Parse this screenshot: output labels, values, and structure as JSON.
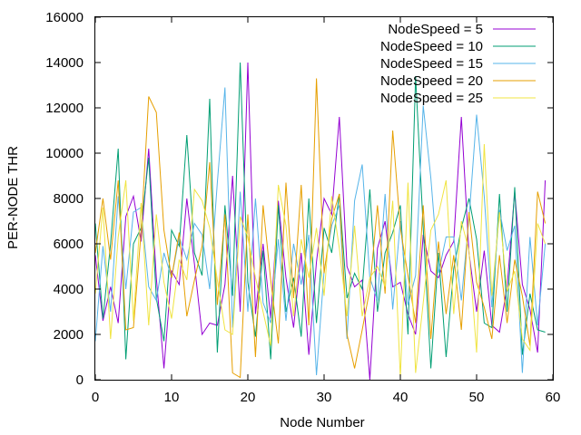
{
  "chart_data": {
    "type": "line",
    "title": "",
    "xlabel": "Node Number",
    "ylabel": "PER-NODE THR",
    "xlim": [
      0,
      60
    ],
    "ylim": [
      0,
      16000
    ],
    "x_ticks": [
      "0",
      "10",
      "20",
      "30",
      "40",
      "50",
      "60"
    ],
    "y_ticks": [
      "0",
      "2000",
      "4000",
      "6000",
      "8000",
      "10000",
      "12000",
      "14000",
      "16000"
    ],
    "grid": false,
    "legend_position": "top-right",
    "x": [
      0,
      1,
      2,
      3,
      4,
      5,
      6,
      7,
      8,
      9,
      10,
      11,
      12,
      13,
      14,
      15,
      16,
      17,
      18,
      19,
      20,
      21,
      22,
      23,
      24,
      25,
      26,
      27,
      28,
      29,
      30,
      31,
      32,
      33,
      34,
      35,
      36,
      37,
      38,
      39,
      40,
      41,
      42,
      43,
      44,
      45,
      46,
      47,
      48,
      49,
      50,
      51,
      52,
      53,
      54,
      55,
      56,
      57,
      58,
      59
    ],
    "series": [
      {
        "name": "NodeSpeed = 5",
        "color": "#9400d3",
        "values": [
          5500,
          2600,
          4100,
          2500,
          7200,
          8100,
          6100,
          10200,
          4500,
          500,
          4800,
          4200,
          8000,
          5100,
          2000,
          2500,
          2400,
          4200,
          9000,
          3000,
          14000,
          2900,
          6000,
          2700,
          7900,
          4500,
          2300,
          5600,
          1100,
          5200,
          8000,
          7300,
          11600,
          5000,
          4100,
          4400,
          0,
          5800,
          7000,
          4100,
          4300,
          2900,
          2000,
          6400,
          4800,
          4500,
          5500,
          6100,
          11600,
          5600,
          3000,
          5700,
          2400,
          2100,
          4100,
          8300,
          4200,
          3100,
          1200,
          8800
        ]
      },
      {
        "name": "NodeSpeed = 10",
        "color": "#009e73",
        "values": [
          6900,
          2700,
          6000,
          10200,
          900,
          6000,
          6700,
          9800,
          3600,
          1700,
          6600,
          5900,
          10800,
          5600,
          4600,
          12400,
          1200,
          7700,
          3700,
          14000,
          4300,
          1900,
          5700,
          900,
          7700,
          3000,
          4500,
          1900,
          8000,
          2500,
          6700,
          5600,
          8200,
          3600,
          4700,
          4000,
          8400,
          3000,
          5600,
          6500,
          7700,
          2000,
          13400,
          6700,
          500,
          5600,
          1000,
          4900,
          6700,
          8000,
          6200,
          2500,
          2300,
          8200,
          3000,
          8500,
          1100,
          3800,
          2200,
          2100
        ]
      },
      {
        "name": "NodeSpeed = 15",
        "color": "#56b4e9",
        "values": [
          1700,
          5900,
          3000,
          8100,
          4000,
          7400,
          7600,
          4100,
          3500,
          5600,
          4500,
          6300,
          5300,
          6900,
          6400,
          4000,
          8700,
          12900,
          2300,
          8300,
          3000,
          8000,
          3400,
          2500,
          6200,
          2600,
          6000,
          4200,
          6400,
          200,
          4800,
          6800,
          7700,
          1800,
          7900,
          9500,
          4500,
          3500,
          8200,
          3100,
          7000,
          3300,
          4600,
          12100,
          8900,
          4700,
          6300,
          6300,
          3500,
          7100,
          11700,
          8100,
          3200,
          7500,
          5700,
          6800,
          300,
          6300,
          2400,
          6000
        ]
      },
      {
        "name": "NodeSpeed = 20",
        "color": "#e69f00",
        "values": [
          5600,
          8000,
          5300,
          8800,
          2200,
          2300,
          6500,
          12500,
          11800,
          6600,
          4500,
          6500,
          2800,
          4400,
          5900,
          9600,
          3300,
          7300,
          300,
          100,
          7300,
          1000,
          7700,
          4400,
          1600,
          8700,
          3600,
          8600,
          2400,
          13300,
          4700,
          7100,
          8200,
          2000,
          500,
          2200,
          4000,
          7700,
          3800,
          11000,
          6700,
          4600,
          2500,
          7700,
          1800,
          6100,
          2900,
          5500,
          2200,
          7400,
          4300,
          3200,
          1800,
          5500,
          2500,
          5300,
          3700,
          1500,
          8300,
          6900
        ]
      },
      {
        "name": "NodeSpeed = 25",
        "color": "#f0e442",
        "values": [
          3800,
          7600,
          1800,
          6300,
          8800,
          2600,
          7800,
          2400,
          7300,
          4300,
          2700,
          5300,
          4400,
          8400,
          7900,
          6700,
          4400,
          2200,
          2000,
          7200,
          6300,
          4500,
          3000,
          1500,
          8600,
          6800,
          2800,
          6200,
          4500,
          6700,
          3700,
          8100,
          5800,
          2800,
          6800,
          2800,
          4500,
          5000,
          4100,
          7900,
          100,
          8700,
          300,
          3400,
          6600,
          7300,
          8800,
          2900,
          7000,
          5700,
          1200,
          10400,
          3700,
          7400,
          3900,
          4800,
          1800,
          1300,
          6900,
          6000
        ]
      }
    ]
  }
}
